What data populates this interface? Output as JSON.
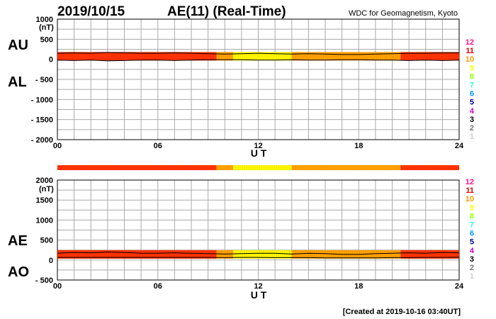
{
  "header": {
    "date": "2019/10/15",
    "title": "AE(11) (Real-Time)",
    "source": "WDC for Geomagnetism, Kyoto"
  },
  "footer": {
    "created": "[Created at 2019-10-16 03:40UT]"
  },
  "colors": {
    "grid": "#aaaaaa",
    "frame": "#000000",
    "band_level_10": "#ffa500",
    "band_level_11": "#ff3300",
    "band_level_9": "#ffff00"
  },
  "legend_levels": [
    {
      "label": "12",
      "color": "#ff1493"
    },
    {
      "label": "11",
      "color": "#e00000"
    },
    {
      "label": "10",
      "color": "#ff9900"
    },
    {
      "label": "9",
      "color": "#ffff00"
    },
    {
      "label": "8",
      "color": "#99ff00"
    },
    {
      "label": "7",
      "color": "#33ffcc"
    },
    {
      "label": "6",
      "color": "#0099ff"
    },
    {
      "label": "5",
      "color": "#000099"
    },
    {
      "label": "4",
      "color": "#cc00cc"
    },
    {
      "label": "3",
      "color": "#000000"
    },
    {
      "label": "2",
      "color": "#777777"
    },
    {
      "label": "1",
      "color": "#cccccc"
    }
  ],
  "chart_data": [
    {
      "type": "line",
      "panel": "AU/AL",
      "unit": "(nT)",
      "series_labels": [
        "AU",
        "AL"
      ],
      "xlabel": "U T",
      "xlim": [
        0,
        24
      ],
      "x_ticks": [
        "00",
        "06",
        "12",
        "18",
        "24"
      ],
      "ylim": [
        -2000,
        1000
      ],
      "y_ticks": [
        "1000",
        "500",
        "0",
        "- 500",
        "- 1000",
        "- 1500",
        "- 2000"
      ],
      "y_tick_values": [
        1000,
        500,
        0,
        -500,
        -1000,
        -1500,
        -2000
      ],
      "grid": true,
      "level_segments": [
        {
          "start": 0,
          "end": 9.5,
          "level": 11
        },
        {
          "start": 9.5,
          "end": 10.5,
          "level": 10
        },
        {
          "start": 10.5,
          "end": 14,
          "level": 9
        },
        {
          "start": 14,
          "end": 20.5,
          "level": 10
        },
        {
          "start": 20.5,
          "end": 24,
          "level": 11
        }
      ],
      "series": [
        {
          "name": "AU",
          "x": [
            0,
            1,
            2,
            3,
            4,
            5,
            6,
            7,
            8,
            9,
            10,
            11,
            12,
            13,
            14,
            15,
            16,
            17,
            18,
            19,
            20,
            21,
            22,
            23,
            24
          ],
          "values": [
            150,
            160,
            150,
            170,
            160,
            150,
            150,
            160,
            150,
            140,
            130,
            140,
            150,
            140,
            130,
            140,
            130,
            120,
            120,
            130,
            140,
            150,
            150,
            160,
            160
          ]
        },
        {
          "name": "AL",
          "x": [
            0,
            1,
            2,
            3,
            4,
            5,
            6,
            7,
            8,
            9,
            10,
            11,
            12,
            13,
            14,
            15,
            16,
            17,
            18,
            19,
            20,
            21,
            22,
            23,
            24
          ],
          "values": [
            -20,
            -30,
            -20,
            -40,
            -30,
            -20,
            -20,
            -30,
            -20,
            -10,
            -10,
            -10,
            -20,
            -20,
            -10,
            -20,
            -20,
            -10,
            -10,
            -20,
            -20,
            -30,
            -20,
            -30,
            -20
          ]
        }
      ]
    },
    {
      "type": "line",
      "panel": "AE/AO",
      "unit": "(nT)",
      "series_labels": [
        "AE",
        "AO"
      ],
      "xlabel": "U T",
      "xlim": [
        0,
        24
      ],
      "x_ticks": [
        "00",
        "06",
        "12",
        "18",
        "24"
      ],
      "ylim": [
        -500,
        2000
      ],
      "y_ticks": [
        "2000",
        "1500",
        "1000",
        "500",
        "0",
        "- 500"
      ],
      "y_tick_values": [
        2000,
        1500,
        1000,
        500,
        0,
        -500
      ],
      "grid": true,
      "series": [
        {
          "name": "AE",
          "x": [
            0,
            1,
            2,
            3,
            4,
            5,
            6,
            7,
            8,
            9,
            10,
            11,
            12,
            13,
            14,
            15,
            16,
            17,
            18,
            19,
            20,
            21,
            22,
            23,
            24
          ],
          "values": [
            170,
            190,
            180,
            200,
            190,
            170,
            170,
            180,
            170,
            160,
            150,
            160,
            170,
            170,
            150,
            170,
            160,
            140,
            140,
            160,
            170,
            180,
            170,
            190,
            180
          ]
        },
        {
          "name": "AO",
          "x": [
            0,
            1,
            2,
            3,
            4,
            5,
            6,
            7,
            8,
            9,
            10,
            11,
            12,
            13,
            14,
            15,
            16,
            17,
            18,
            19,
            20,
            21,
            22,
            23,
            24
          ],
          "values": [
            65,
            65,
            65,
            65,
            65,
            65,
            65,
            65,
            65,
            65,
            60,
            65,
            65,
            60,
            60,
            60,
            55,
            55,
            55,
            55,
            60,
            60,
            65,
            65,
            70
          ]
        }
      ]
    }
  ]
}
